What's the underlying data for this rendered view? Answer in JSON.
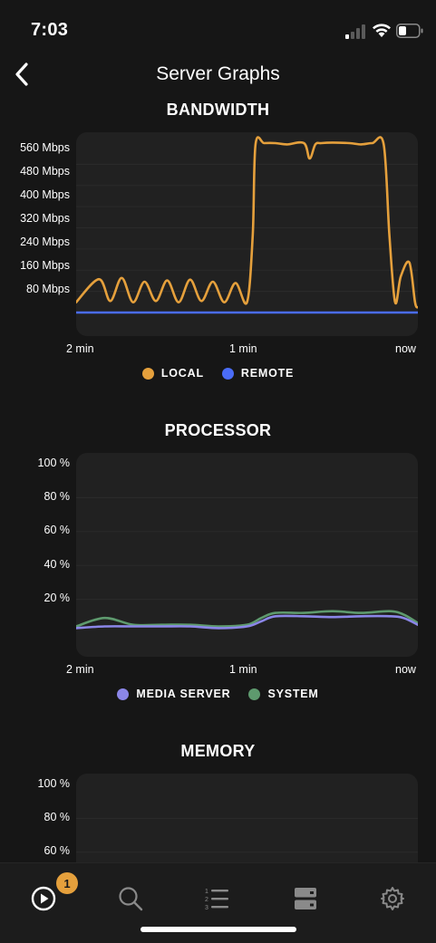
{
  "status_bar": {
    "time": "7:03"
  },
  "header": {
    "title": "Server Graphs"
  },
  "bandwidth": {
    "title": "BANDWIDTH",
    "y_ticks": [
      "560 Mbps",
      "480 Mbps",
      "400 Mbps",
      "320 Mbps",
      "240 Mbps",
      "160 Mbps",
      "80 Mbps"
    ],
    "x_ticks": [
      "2 min",
      "1 min",
      "now"
    ],
    "legend": [
      {
        "label": "LOCAL",
        "color": "#e5a03c"
      },
      {
        "label": "REMOTE",
        "color": "#4a6cf7"
      }
    ]
  },
  "processor": {
    "title": "PROCESSOR",
    "y_ticks": [
      "100 %",
      "80 %",
      "60 %",
      "40 %",
      "20 %"
    ],
    "x_ticks": [
      "2 min",
      "1 min",
      "now"
    ],
    "legend": [
      {
        "label": "MEDIA SERVER",
        "color": "#8b86e8"
      },
      {
        "label": "SYSTEM",
        "color": "#5e9a6e"
      }
    ]
  },
  "memory": {
    "title": "MEMORY",
    "y_ticks": [
      "100 %",
      "80 %",
      "60 %"
    ]
  },
  "tab_bar": {
    "badge_count": "1",
    "tabs": [
      "now-playing-icon",
      "search-icon",
      "queue-list-icon",
      "server-icon",
      "settings-gear-icon"
    ],
    "accent_color": "#e5a03c"
  },
  "chart_data": [
    {
      "type": "line",
      "x": [
        -120,
        -112,
        -108,
        -104,
        -100,
        -96,
        -92,
        -88,
        -84,
        -80,
        -76,
        -72,
        -68,
        -64,
        -60,
        -58,
        -57,
        -54,
        -50,
        -46,
        -40,
        -38,
        -36,
        -34,
        -30,
        -24,
        -20,
        -16,
        -12,
        -10,
        -8,
        -6,
        -3,
        -1,
        0
      ],
      "series": [
        {
          "name": "LOCAL",
          "values": [
            40,
            130,
            45,
            135,
            40,
            120,
            45,
            125,
            40,
            128,
            45,
            120,
            40,
            115,
            40,
            300,
            655,
            660,
            660,
            655,
            660,
            600,
            655,
            660,
            662,
            660,
            655,
            660,
            655,
            300,
            40,
            140,
            195,
            40,
            20
          ]
        },
        {
          "name": "REMOTE",
          "values": [
            0,
            0,
            0,
            0,
            0,
            0,
            0,
            0,
            0,
            0,
            0,
            0,
            0,
            0,
            0,
            0,
            0,
            0,
            0,
            0,
            0,
            0,
            0,
            0,
            0,
            0,
            0,
            0,
            0,
            0,
            0,
            0,
            0,
            0,
            0
          ]
        }
      ],
      "title": "BANDWIDTH",
      "y_unit": "Mbps",
      "xlabel": "",
      "ylabel": "",
      "ylim": [
        0,
        660
      ]
    },
    {
      "type": "line",
      "x": [
        -120,
        -110,
        -100,
        -90,
        -80,
        -70,
        -60,
        -55,
        -50,
        -40,
        -30,
        -20,
        -10,
        -5,
        0
      ],
      "series": [
        {
          "name": "MEDIA SERVER",
          "values": [
            3,
            4,
            4,
            4,
            4,
            3,
            4,
            7,
            10,
            10,
            9.5,
            10,
            10,
            9,
            5
          ]
        },
        {
          "name": "SYSTEM",
          "values": [
            4,
            9,
            5,
            5,
            5,
            4,
            5,
            9,
            12,
            12,
            13,
            12,
            13,
            11,
            6
          ]
        }
      ],
      "title": "PROCESSOR",
      "y_unit": "%",
      "xlabel": "",
      "ylabel": "",
      "ylim": [
        0,
        100
      ]
    },
    {
      "type": "line",
      "x": [],
      "series": [],
      "title": "MEMORY",
      "y_unit": "%",
      "ylim": [
        0,
        100
      ]
    }
  ]
}
